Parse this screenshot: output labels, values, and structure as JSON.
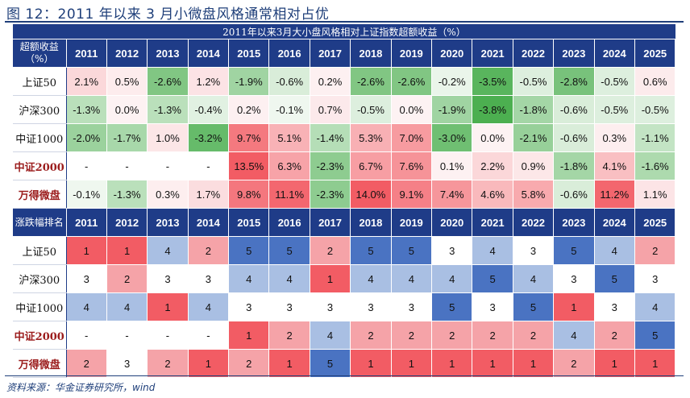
{
  "figure_title": "图 12：2011 年以来 3 月小微盘风格通常相对占优",
  "source_note": "资料来源：华金证券研究所，wind",
  "chart_data": {
    "type": "table",
    "colors": {
      "header_bg": "#1f3c88",
      "positive_strong": "#f25c64",
      "negative_strong": "#4caf50",
      "rank_best": "#f25c64",
      "rank_worst": "#4a73c2",
      "highlight_label": "#9b1c1c"
    },
    "years": [
      "2011",
      "2012",
      "2013",
      "2014",
      "2015",
      "2016",
      "2017",
      "2018",
      "2019",
      "2020",
      "2021",
      "2022",
      "2023",
      "2024",
      "2025"
    ],
    "returns_table": {
      "title": "2011年以来3月大小盘风格相对上证指数超额收益（%）",
      "corner_label": "超额收益（%）",
      "rows": [
        {
          "name": "上证50",
          "highlight": false,
          "values": [
            2.1,
            0.5,
            -2.6,
            1.2,
            -1.9,
            -0.6,
            0.2,
            -2.6,
            -2.6,
            -0.2,
            -3.5,
            -0.5,
            -2.8,
            -0.5,
            0.6
          ]
        },
        {
          "name": "沪深300",
          "highlight": false,
          "values": [
            -1.3,
            0.0,
            -1.3,
            -0.4,
            0.2,
            -0.1,
            0.7,
            -0.5,
            0.0,
            -1.9,
            -3.8,
            -1.8,
            -0.6,
            -0.5,
            -0.5
          ]
        },
        {
          "name": "中证1000",
          "highlight": false,
          "values": [
            -2.0,
            -1.7,
            1.0,
            -3.2,
            9.7,
            5.1,
            -1.4,
            5.3,
            7.0,
            -3.0,
            0.0,
            -2.1,
            -0.6,
            0.3,
            -1.1
          ]
        },
        {
          "name": "中证2000",
          "highlight": true,
          "values": [
            null,
            null,
            null,
            null,
            13.5,
            6.3,
            -2.3,
            6.7,
            7.6,
            0.1,
            2.2,
            0.9,
            -1.8,
            4.1,
            -1.6
          ]
        },
        {
          "name": "万得微盘",
          "highlight": true,
          "values": [
            -0.1,
            -1.3,
            0.3,
            1.7,
            9.8,
            11.1,
            -2.3,
            14.0,
            9.1,
            7.4,
            4.6,
            5.8,
            -0.6,
            11.2,
            1.1
          ]
        }
      ]
    },
    "rank_table": {
      "corner_label": "涨跌幅排名",
      "rows": [
        {
          "name": "上证50",
          "highlight": false,
          "values": [
            1,
            1,
            4,
            2,
            5,
            5,
            2,
            5,
            5,
            3,
            4,
            3,
            5,
            4,
            2
          ]
        },
        {
          "name": "沪深300",
          "highlight": false,
          "values": [
            3,
            2,
            3,
            3,
            4,
            4,
            1,
            4,
            4,
            4,
            5,
            4,
            3,
            5,
            3
          ]
        },
        {
          "name": "中证1000",
          "highlight": false,
          "values": [
            4,
            4,
            1,
            4,
            3,
            3,
            3,
            3,
            3,
            5,
            3,
            5,
            1,
            3,
            4
          ]
        },
        {
          "name": "中证2000",
          "highlight": true,
          "values": [
            null,
            null,
            null,
            null,
            1,
            2,
            4,
            2,
            2,
            2,
            2,
            2,
            4,
            2,
            5
          ]
        },
        {
          "name": "万得微盘",
          "highlight": true,
          "values": [
            2,
            3,
            2,
            1,
            2,
            1,
            5,
            1,
            1,
            1,
            1,
            1,
            2,
            1,
            1
          ]
        }
      ]
    }
  }
}
